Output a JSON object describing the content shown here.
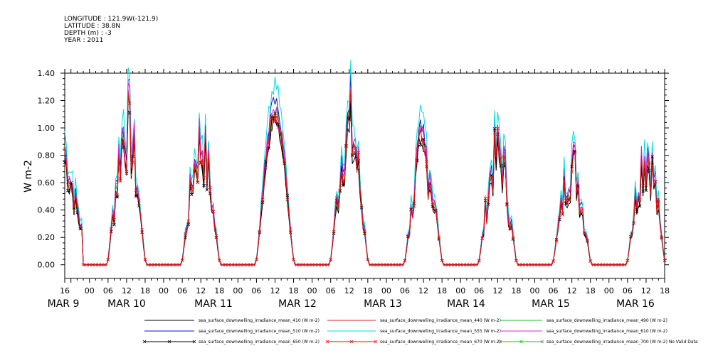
{
  "header": {
    "longitude": "LONGITUDE : 121.9W(-121.9)",
    "latitude": "LATITUDE : 38.8N",
    "depth": "DEPTH (m) : -3",
    "year": "YEAR : 2011"
  },
  "chart_data": {
    "type": "line",
    "ylabel": "W m-2",
    "ylim": [
      -0.1,
      1.4
    ],
    "yticks": [
      "0.00",
      "0.20",
      "0.40",
      "0.60",
      "0.80",
      "1.00",
      "1.20",
      "1.40"
    ],
    "xlim": [
      0,
      194
    ],
    "hour_ticks": [
      "16",
      "00",
      "06",
      "12",
      "18",
      "00",
      "06",
      "12",
      "18",
      "00",
      "06",
      "12",
      "18",
      "00",
      "06",
      "12",
      "18",
      "00",
      "06",
      "12",
      "18",
      "00",
      "06",
      "12",
      "18",
      "00",
      "06",
      "12",
      "18",
      "00",
      "06",
      "12",
      "18"
    ],
    "day_labels": [
      "MAR  9",
      "MAR 10",
      "MAR 11",
      "MAR 12",
      "MAR 13",
      "MAR 14",
      "MAR 15",
      "MAR 16"
    ],
    "grid": false,
    "legend_position": "bottom",
    "day_peaks": [
      {
        "label": "MAR 9",
        "center_hour": 20,
        "peak": 1.1
      },
      {
        "label": "MAR 10",
        "center_hour": 44,
        "peak": 0.97
      },
      {
        "label": "MAR 11",
        "center_hour": 68,
        "peak": 1.1
      },
      {
        "label": "MAR 12",
        "center_hour": 92,
        "peak": 1.1
      },
      {
        "label": "MAR 13",
        "center_hour": 116,
        "peak": 0.9
      },
      {
        "label": "MAR 14",
        "center_hour": 140,
        "peak": 0.9
      },
      {
        "label": "MAR 15",
        "center_hour": 164,
        "peak": 0.8
      },
      {
        "label": "MAR 16",
        "center_hour": 188,
        "peak": 0.9
      }
    ],
    "series": [
      {
        "name": "sea_surface_downwelling_irradiance_mean_410 (W m-2)",
        "color": "#000000",
        "scale": 0.95,
        "marker": false
      },
      {
        "name": "sea_surface_downwelling_irradiance_mean_440 (W m-2)",
        "color": "#dd2222",
        "scale": 1.0,
        "marker": false
      },
      {
        "name": "sea_surface_downwelling_irradiance_mean_490 (W m-2)",
        "color": "#22bb22",
        "scale": 1.02,
        "marker": false
      },
      {
        "name": "sea_surface_downwelling_irradiance_mean_510 (W m-2)",
        "color": "#1111cc",
        "scale": 1.08,
        "marker": false
      },
      {
        "name": "sea_surface_downwelling_irradiance_mean_555 (W m-2)",
        "color": "#00dddd",
        "scale": 1.18,
        "marker": false
      },
      {
        "name": "sea_surface_downwelling_irradiance_mean_610 (W m-2)",
        "color": "#dd22dd",
        "scale": 1.06,
        "marker": false
      },
      {
        "name": "sea_surface_downwelling_irradiance_mean_650 (W m-2)",
        "color": "#000000",
        "scale": 0.97,
        "marker": true
      },
      {
        "name": "sea_surface_downwelling_irradiance_mean_670 (W m-2)",
        "color": "#ee1111",
        "scale": 1.0,
        "marker": true
      },
      {
        "name": "sea_surface_downwelling_irradiance_mean_700 (W m-2) No Valid Data",
        "color": "#22bb22",
        "scale": 0,
        "marker": true
      }
    ]
  }
}
